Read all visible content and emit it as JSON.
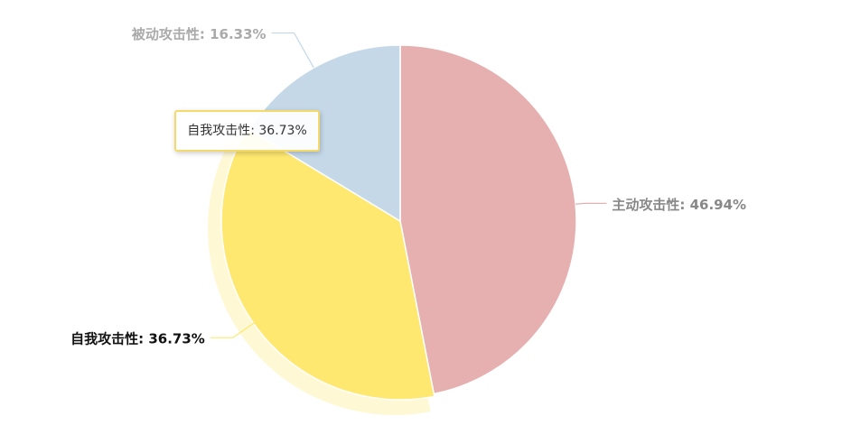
{
  "chart_data": {
    "type": "pie",
    "values": [
      46.94,
      36.73,
      16.33
    ],
    "value_labels": [
      "主动攻击性: 46.94%",
      "自我攻击性: 36.73%",
      "被动攻击性: 16.33%"
    ],
    "colors": [
      "#e6b0b0",
      "#fee870",
      "#c4d8e8"
    ],
    "highlighted": 1
  }
}
